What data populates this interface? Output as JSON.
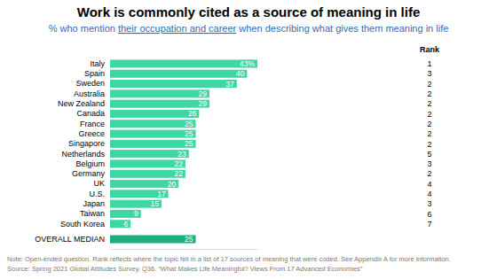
{
  "chart_data": {
    "type": "bar",
    "orientation": "horizontal",
    "title": "Work is commonly cited as a source of meaning in life",
    "subtitle": "% who mention their occupation and career when describing what gives them meaning in life",
    "subtitle_underlined": "their occupation and career",
    "categories": [
      "Italy",
      "Spain",
      "Sweden",
      "Australia",
      "New Zealand",
      "Canada",
      "France",
      "Greece",
      "Singapore",
      "Netherlands",
      "Belgium",
      "Germany",
      "UK",
      "U.S.",
      "Japan",
      "Taiwan",
      "South Korea",
      "OVERALL MEDIAN"
    ],
    "values": [
      43,
      40,
      37,
      29,
      29,
      26,
      25,
      25,
      25,
      23,
      22,
      22,
      20,
      17,
      15,
      9,
      6,
      25
    ],
    "value_labels": [
      "43%",
      "40",
      "37",
      "29",
      "29",
      "26",
      "25",
      "25",
      "25",
      "23",
      "22",
      "22",
      "20",
      "17",
      "15",
      "9",
      "6",
      "25"
    ],
    "colors": [
      "#3fd6a6",
      "#3fd6a6",
      "#3fd6a6",
      "#3fd6a6",
      "#3fd6a6",
      "#3fd6a6",
      "#3fd6a6",
      "#3fd6a6",
      "#3fd6a6",
      "#3fd6a6",
      "#3fd6a6",
      "#3fd6a6",
      "#3fd6a6",
      "#3fd6a6",
      "#3fd6a6",
      "#3fd6a6",
      "#3fd6a6",
      "#1fae80"
    ],
    "rank_title": "Rank",
    "ranks": [
      1,
      3,
      2,
      2,
      2,
      2,
      2,
      2,
      2,
      5,
      3,
      2,
      4,
      4,
      3,
      6,
      7,
      null
    ],
    "xlim": [
      0,
      43
    ],
    "data_labels": true,
    "tick_labels": "y",
    "grid": false,
    "note": "Note: Open-ended question. Rank reflects where the topic fell in a list of 17 sources of meaning that were coded. See Appendix A for more information.",
    "source": "Source: Spring 2021 Global Attitudes Survey. Q36. “What Makes Life Meaningful? Views From 17 Advanced Economies”"
  }
}
